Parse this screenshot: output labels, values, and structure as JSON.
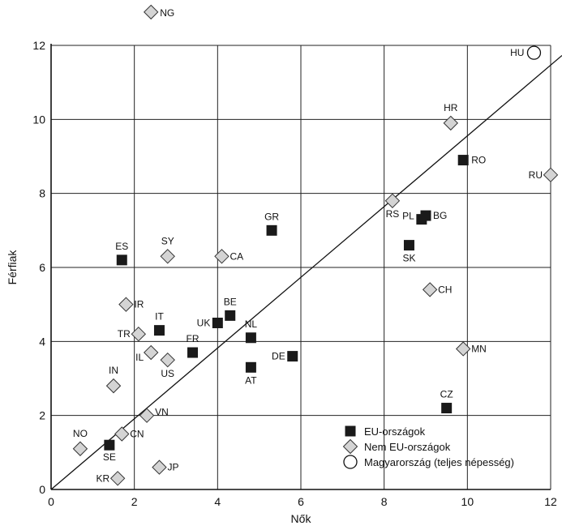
{
  "chart_data": {
    "type": "scatter",
    "xlabel": "Nők",
    "ylabel": "Férfiak",
    "xlim": [
      0,
      12
    ],
    "ylim": [
      0,
      12
    ],
    "x_ticks": [
      "0",
      "2",
      "4",
      "6",
      "8",
      "10",
      "12"
    ],
    "y_ticks": [
      "0",
      "2",
      "4",
      "6",
      "8",
      "10",
      "12"
    ],
    "grid": true,
    "diagonal_line": true,
    "legend_position": "bottom-right",
    "series": [
      {
        "name": "EU-országok",
        "marker": "square",
        "color": "#1a1a1a",
        "points": [
          {
            "label": "ES",
            "x": 1.7,
            "y": 6.2
          },
          {
            "label": "IT",
            "x": 2.6,
            "y": 4.3
          },
          {
            "label": "FR",
            "x": 3.4,
            "y": 3.7
          },
          {
            "label": "UK",
            "x": 4.0,
            "y": 4.5
          },
          {
            "label": "BE",
            "x": 4.3,
            "y": 4.7
          },
          {
            "label": "NL",
            "x": 4.8,
            "y": 4.1
          },
          {
            "label": "AT",
            "x": 4.8,
            "y": 3.3
          },
          {
            "label": "DE",
            "x": 5.8,
            "y": 3.6
          },
          {
            "label": "GR",
            "x": 5.3,
            "y": 7.0
          },
          {
            "label": "SE",
            "x": 1.4,
            "y": 1.2
          },
          {
            "label": "PL",
            "x": 8.9,
            "y": 7.3
          },
          {
            "label": "BG",
            "x": 9.0,
            "y": 7.4
          },
          {
            "label": "SK",
            "x": 8.6,
            "y": 6.6
          },
          {
            "label": "RO",
            "x": 9.9,
            "y": 8.9
          },
          {
            "label": "CZ",
            "x": 9.5,
            "y": 2.2
          }
        ]
      },
      {
        "name": "Nem EU-országok",
        "marker": "diamond",
        "color": "#d4d4d4",
        "points": [
          {
            "label": "NG",
            "x": 2.4,
            "y": 12.9
          },
          {
            "label": "SY",
            "x": 2.8,
            "y": 6.3
          },
          {
            "label": "CA",
            "x": 4.1,
            "y": 6.3
          },
          {
            "label": "IR",
            "x": 1.8,
            "y": 5.0
          },
          {
            "label": "TR",
            "x": 2.1,
            "y": 4.2
          },
          {
            "label": "IL",
            "x": 2.4,
            "y": 3.7
          },
          {
            "label": "US",
            "x": 2.8,
            "y": 3.5
          },
          {
            "label": "IN",
            "x": 1.5,
            "y": 2.8
          },
          {
            "label": "VN",
            "x": 2.3,
            "y": 2.0
          },
          {
            "label": "CN",
            "x": 1.7,
            "y": 1.5
          },
          {
            "label": "NO",
            "x": 0.7,
            "y": 1.1
          },
          {
            "label": "KR",
            "x": 1.6,
            "y": 0.3
          },
          {
            "label": "JP",
            "x": 2.6,
            "y": 0.6
          },
          {
            "label": "HR",
            "x": 9.6,
            "y": 9.9
          },
          {
            "label": "RU",
            "x": 12.0,
            "y": 8.5
          },
          {
            "label": "RS",
            "x": 8.2,
            "y": 7.8
          },
          {
            "label": "CH",
            "x": 9.1,
            "y": 5.4
          },
          {
            "label": "MN",
            "x": 9.9,
            "y": 3.8
          }
        ]
      },
      {
        "name": "Magyarország (teljes népesség)",
        "marker": "circle",
        "color": "#ffffff",
        "points": [
          {
            "label": "HU",
            "x": 11.6,
            "y": 11.8
          }
        ]
      }
    ]
  }
}
